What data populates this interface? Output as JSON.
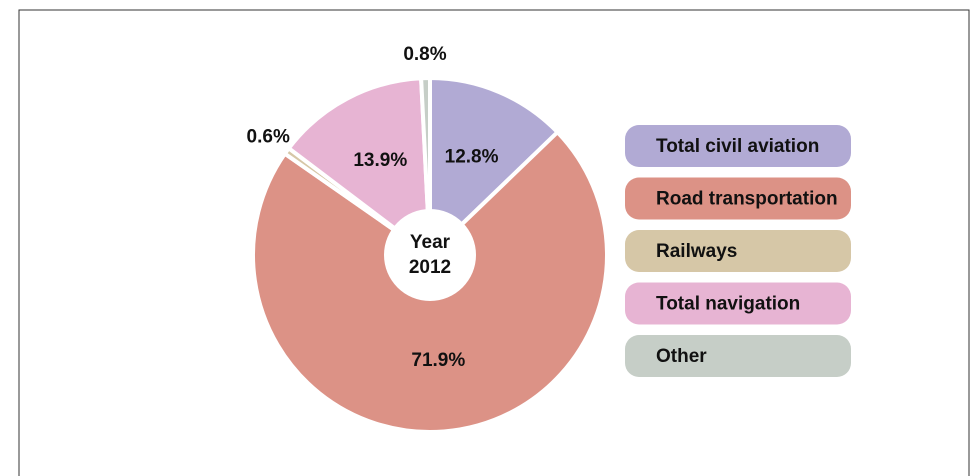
{
  "chart_data": {
    "type": "pie",
    "center_label": [
      "Year",
      "2012"
    ],
    "categories": [
      "Total civil aviation",
      "Road transportation",
      "Railways",
      "Total navigation",
      "Other"
    ],
    "values": [
      12.8,
      71.9,
      0.6,
      13.9,
      0.8
    ],
    "value_labels": [
      "12.8%",
      "71.9%",
      "0.6%",
      "13.9%",
      "0.8%"
    ],
    "colors": [
      "#b1aad4",
      "#dc9286",
      "#d6c7a7",
      "#e7b4d3",
      "#c6cec7"
    ],
    "legend": "right"
  }
}
